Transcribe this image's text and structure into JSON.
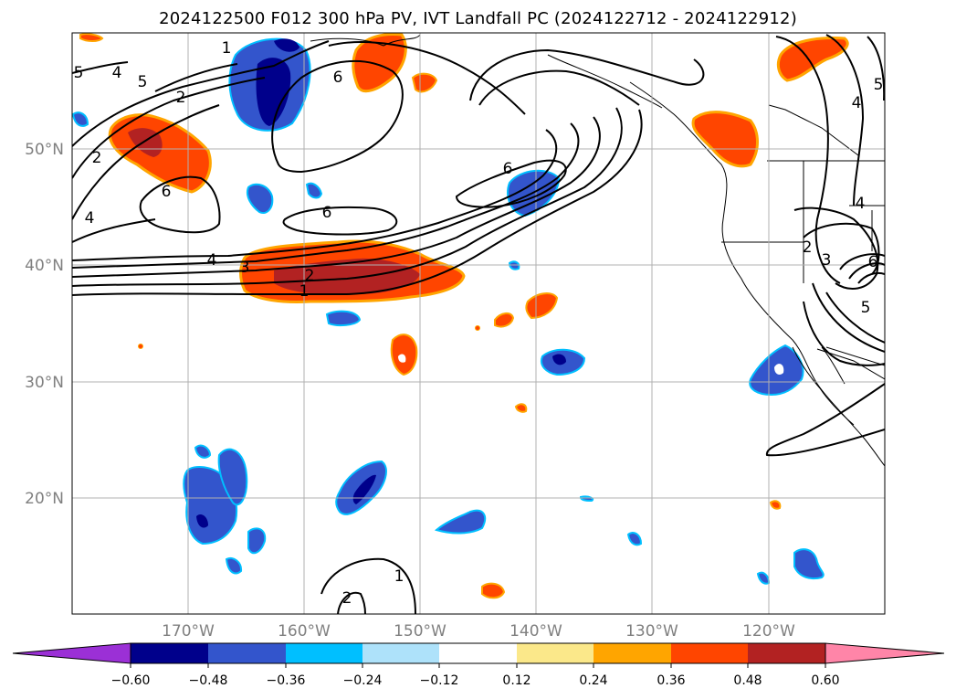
{
  "title": "2024122500 F012 300 hPa PV, IVT Landfall PC (2024122712 - 2024122912)",
  "lat_labels": [
    "50°N",
    "40°N",
    "30°N",
    "20°N"
  ],
  "lon_labels": [
    "170°W",
    "160°W",
    "150°W",
    "140°W",
    "130°W",
    "120°W"
  ],
  "map_extent": {
    "lon_min": -180,
    "lon_max": -110,
    "lat_min": 10,
    "lat_max": 60
  },
  "colorbar": {
    "colors": [
      "#9b30d6",
      "#00008b",
      "#3355cc",
      "#00bfff",
      "#aee2fa",
      "#ffffff",
      "#fbe88a",
      "#ffa500",
      "#ff4500",
      "#b22222",
      "#ff85a8"
    ],
    "tick_labels": [
      "−0.60",
      "−0.48",
      "−0.36",
      "−0.24",
      "−0.12",
      "0.12",
      "0.24",
      "0.36",
      "0.48",
      "0.60"
    ]
  },
  "contour_labels": [
    "4",
    "3",
    "2",
    "1",
    "6",
    "6",
    "6",
    "2",
    "4",
    "5",
    "6",
    "1",
    "2",
    "1",
    "6",
    "4",
    "3",
    "2",
    "5",
    "4",
    "5",
    "6",
    "5"
  ]
}
